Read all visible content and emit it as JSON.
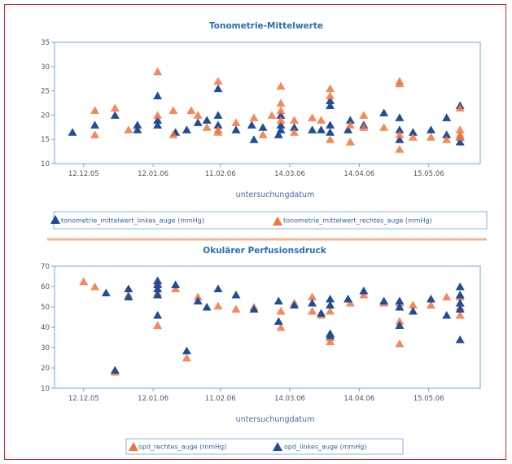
{
  "colors": {
    "frame": "#d0242b",
    "series_orange": "#f4733d",
    "series_blue": "#1f4e99",
    "axis": "#6ea4d8",
    "divider": "#f6b489",
    "title": "#2a6fb3"
  },
  "chart_data": [
    {
      "type": "scatter",
      "title": "Tonometrie-Mittelwerte",
      "xlabel": "untersuchungdatum",
      "ylabel": "",
      "ylim": [
        10,
        35
      ],
      "yticks": [
        10,
        15,
        20,
        25,
        30,
        35
      ],
      "xticks": [
        "12.12.05",
        "12.01.06",
        "11.02.06",
        "14.03.06",
        "14.04.06",
        "15.05.06"
      ],
      "xlim": [
        "2005-11-29",
        "2006-06-07"
      ],
      "grid": false,
      "legend_position": "bottom",
      "series": [
        {
          "name": "tonometrie_mittelwert_linkes_auge (mmHg)",
          "marker": "triangle",
          "color": "#1f4e99",
          "points": [
            [
              "2005-12-07",
              16.5
            ],
            [
              "2005-12-17",
              18
            ],
            [
              "2005-12-26",
              20
            ],
            [
              "2006-01-05",
              18
            ],
            [
              "2006-01-05",
              17
            ],
            [
              "2006-01-14",
              24
            ],
            [
              "2006-01-14",
              19
            ],
            [
              "2006-01-14",
              18
            ],
            [
              "2006-01-22",
              16.5
            ],
            [
              "2006-01-27",
              17
            ],
            [
              "2006-02-01",
              18.5
            ],
            [
              "2006-02-05",
              19
            ],
            [
              "2006-02-10",
              25.5
            ],
            [
              "2006-02-10",
              20
            ],
            [
              "2006-02-10",
              18
            ],
            [
              "2006-02-18",
              17
            ],
            [
              "2006-02-25",
              18
            ],
            [
              "2006-02-26",
              15
            ],
            [
              "2006-03-02",
              17.5
            ],
            [
              "2006-03-09",
              16
            ],
            [
              "2006-03-10",
              20
            ],
            [
              "2006-03-10",
              18
            ],
            [
              "2006-03-10",
              17
            ],
            [
              "2006-03-16",
              17.5
            ],
            [
              "2006-03-24",
              17
            ],
            [
              "2006-03-28",
              17
            ],
            [
              "2006-04-01",
              23
            ],
            [
              "2006-04-01",
              22
            ],
            [
              "2006-04-01",
              18
            ],
            [
              "2006-04-01",
              16.5
            ],
            [
              "2006-04-09",
              17
            ],
            [
              "2006-04-10",
              19
            ],
            [
              "2006-04-16",
              18
            ],
            [
              "2006-04-25",
              20.5
            ],
            [
              "2006-05-02",
              19.5
            ],
            [
              "2006-05-02",
              17
            ],
            [
              "2006-05-02",
              15
            ],
            [
              "2006-05-08",
              16.5
            ],
            [
              "2006-05-16",
              17
            ],
            [
              "2006-05-23",
              19.5
            ],
            [
              "2006-05-23",
              16
            ],
            [
              "2006-05-29",
              22
            ],
            [
              "2006-05-29",
              15.5
            ],
            [
              "2006-05-29",
              14.5
            ]
          ]
        },
        {
          "name": "tonometrie_mittelwert_rechtes_auge (mmHg)",
          "marker": "triangle",
          "color": "#f4733d",
          "points": [
            [
              "2005-12-17",
              21
            ],
            [
              "2005-12-17",
              16
            ],
            [
              "2005-12-26",
              21.5
            ],
            [
              "2006-01-01",
              17
            ],
            [
              "2006-01-14",
              29
            ],
            [
              "2006-01-14",
              20
            ],
            [
              "2006-01-21",
              21
            ],
            [
              "2006-01-21",
              16
            ],
            [
              "2006-01-29",
              21
            ],
            [
              "2006-02-01",
              20
            ],
            [
              "2006-02-05",
              17.5
            ],
            [
              "2006-02-10",
              27
            ],
            [
              "2006-02-10",
              17
            ],
            [
              "2006-02-10",
              16.5
            ],
            [
              "2006-02-18",
              18.5
            ],
            [
              "2006-02-26",
              19.5
            ],
            [
              "2006-03-02",
              16
            ],
            [
              "2006-03-06",
              20
            ],
            [
              "2006-03-10",
              26
            ],
            [
              "2006-03-10",
              22.5
            ],
            [
              "2006-03-10",
              21
            ],
            [
              "2006-03-10",
              19
            ],
            [
              "2006-03-16",
              19
            ],
            [
              "2006-03-16",
              16.5
            ],
            [
              "2006-03-24",
              19.5
            ],
            [
              "2006-03-28",
              19
            ],
            [
              "2006-04-01",
              25.5
            ],
            [
              "2006-04-01",
              24
            ],
            [
              "2006-04-01",
              15
            ],
            [
              "2006-04-10",
              18
            ],
            [
              "2006-04-10",
              14.5
            ],
            [
              "2006-04-16",
              20
            ],
            [
              "2006-04-16",
              17.5
            ],
            [
              "2006-04-25",
              17.5
            ],
            [
              "2006-05-02",
              27
            ],
            [
              "2006-05-02",
              26.5
            ],
            [
              "2006-05-02",
              16
            ],
            [
              "2006-05-02",
              13
            ],
            [
              "2006-05-08",
              15.5
            ],
            [
              "2006-05-16",
              15.5
            ],
            [
              "2006-05-23",
              15
            ],
            [
              "2006-05-29",
              21.5
            ],
            [
              "2006-05-29",
              17
            ],
            [
              "2006-05-29",
              16
            ],
            [
              "2006-05-29",
              15.5
            ]
          ]
        }
      ]
    },
    {
      "type": "scatter",
      "title": "Okulärer Perfusionsdruck",
      "xlabel": "untersuchungdatum",
      "ylabel": "",
      "ylim": [
        10,
        70
      ],
      "yticks": [
        10,
        20,
        30,
        40,
        50,
        60,
        70
      ],
      "xticks": [
        "12.12.05",
        "12.01.06",
        "11.02.06",
        "14.03.06",
        "14.04.06",
        "15.05.06"
      ],
      "xlim": [
        "2005-11-29",
        "2006-06-07"
      ],
      "grid": false,
      "legend_position": "bottom",
      "series": [
        {
          "name": "opd_rechtes_auge (mmHg)",
          "marker": "triangle",
          "color": "#f4733d",
          "points": [
            [
              "2005-12-12",
              62.5
            ],
            [
              "2005-12-17",
              60
            ],
            [
              "2005-12-26",
              18
            ],
            [
              "2006-01-01",
              56
            ],
            [
              "2006-01-14",
              62
            ],
            [
              "2006-01-14",
              57
            ],
            [
              "2006-01-14",
              41
            ],
            [
              "2006-01-22",
              59
            ],
            [
              "2006-01-27",
              25
            ],
            [
              "2006-02-01",
              55
            ],
            [
              "2006-02-10",
              50.5
            ],
            [
              "2006-02-18",
              49
            ],
            [
              "2006-02-26",
              50
            ],
            [
              "2006-03-10",
              48
            ],
            [
              "2006-03-10",
              40
            ],
            [
              "2006-03-16",
              52
            ],
            [
              "2006-03-24",
              48
            ],
            [
              "2006-03-24",
              55
            ],
            [
              "2006-03-28",
              46
            ],
            [
              "2006-04-01",
              48
            ],
            [
              "2006-04-01",
              35
            ],
            [
              "2006-04-01",
              33
            ],
            [
              "2006-04-10",
              52
            ],
            [
              "2006-04-16",
              56
            ],
            [
              "2006-04-25",
              52
            ],
            [
              "2006-05-02",
              52
            ],
            [
              "2006-05-02",
              43
            ],
            [
              "2006-05-02",
              32
            ],
            [
              "2006-05-08",
              51
            ],
            [
              "2006-05-16",
              51
            ],
            [
              "2006-05-23",
              55
            ],
            [
              "2006-05-29",
              55
            ],
            [
              "2006-05-29",
              50
            ],
            [
              "2006-05-29",
              46
            ]
          ]
        },
        {
          "name": "opd_linkes_auge (mmHg)",
          "marker": "triangle",
          "color": "#1f4e99",
          "points": [
            [
              "2005-12-22",
              57
            ],
            [
              "2005-12-26",
              19
            ],
            [
              "2006-01-01",
              59
            ],
            [
              "2006-01-01",
              55
            ],
            [
              "2006-01-14",
              63
            ],
            [
              "2006-01-14",
              61
            ],
            [
              "2006-01-14",
              59
            ],
            [
              "2006-01-14",
              56
            ],
            [
              "2006-01-14",
              46
            ],
            [
              "2006-01-22",
              61
            ],
            [
              "2006-01-27",
              28.5
            ],
            [
              "2006-02-01",
              53
            ],
            [
              "2006-02-05",
              50
            ],
            [
              "2006-02-10",
              59
            ],
            [
              "2006-02-18",
              56
            ],
            [
              "2006-02-26",
              49
            ],
            [
              "2006-03-09",
              53
            ],
            [
              "2006-03-09",
              43
            ],
            [
              "2006-03-16",
              51
            ],
            [
              "2006-03-24",
              52
            ],
            [
              "2006-03-28",
              47
            ],
            [
              "2006-04-01",
              54
            ],
            [
              "2006-04-01",
              51
            ],
            [
              "2006-04-01",
              37
            ],
            [
              "2006-04-01",
              36
            ],
            [
              "2006-04-09",
              54
            ],
            [
              "2006-04-16",
              58
            ],
            [
              "2006-04-25",
              53
            ],
            [
              "2006-05-02",
              53
            ],
            [
              "2006-05-02",
              50
            ],
            [
              "2006-05-02",
              41
            ],
            [
              "2006-05-08",
              48
            ],
            [
              "2006-05-16",
              54
            ],
            [
              "2006-05-23",
              46
            ],
            [
              "2006-05-29",
              60
            ],
            [
              "2006-05-29",
              56
            ],
            [
              "2006-05-29",
              52
            ],
            [
              "2006-05-29",
              49
            ],
            [
              "2006-05-29",
              34
            ]
          ]
        }
      ]
    }
  ]
}
